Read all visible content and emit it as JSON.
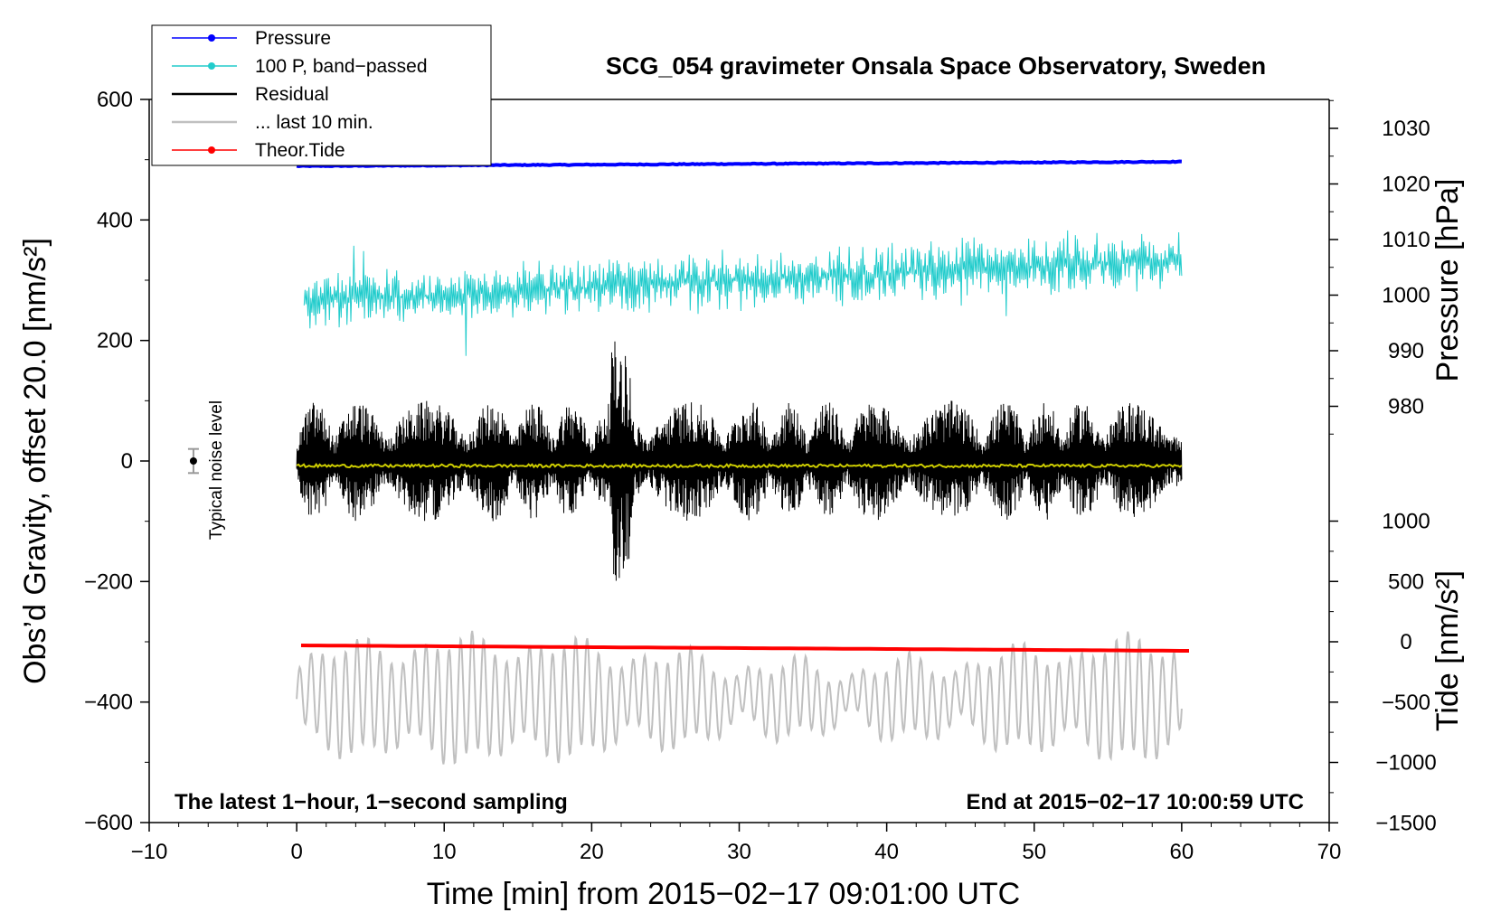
{
  "chart_data": {
    "type": "line",
    "title": "SCG_054 gravimeter Onsala Space Observatory, Sweden",
    "xlabel": "Time [min] from 2015−02−17 09:01:00 UTC",
    "ylabel_left": "Obs’d Gravity, offset 20.0 [nm/s²]",
    "ylabel_pressure": "Pressure [hPa]",
    "ylabel_tide": "Tide [nm/s²]",
    "xlim": [
      -10,
      70
    ],
    "ylim_left": [
      -600,
      600
    ],
    "ylim_pressure_range": [
      975,
      1035
    ],
    "ylim_tide_range": [
      -1500,
      1000
    ],
    "x_ticks": [
      "−10",
      "0",
      "10",
      "20",
      "30",
      "40",
      "50",
      "60",
      "70"
    ],
    "y_ticks_left": [
      "600",
      "400",
      "200",
      "0",
      "−200",
      "−400",
      "−600"
    ],
    "y_ticks_pressure": [
      "1030",
      "1020",
      "1010",
      "1000",
      "990",
      "980"
    ],
    "y_ticks_tide": [
      "1000",
      "500",
      "0",
      "−500",
      "−1000",
      "−1500"
    ],
    "annotation_left": "The latest 1−hour, 1−second sampling",
    "annotation_right": "End at 2015−02−17 10:00:59 UTC",
    "noise_label": "Typical noise level",
    "noise_level": {
      "x": -7,
      "y": 0,
      "err": 20
    },
    "legend": [
      {
        "label": "Pressure",
        "color": "#0000ff",
        "marker": true
      },
      {
        "label": "100 P, band−passed",
        "color": "#22cccc",
        "marker": true
      },
      {
        "label": "Residual",
        "color": "#000000",
        "marker": false
      },
      {
        "label": "... last 10 min.",
        "color": "#c0c0c0",
        "marker": false
      },
      {
        "label": "Theor.Tide",
        "color": "#ff0000",
        "marker": true
      }
    ],
    "series": [
      {
        "name": "Pressure",
        "axis": "pressure",
        "color": "#0000ff",
        "x_start": 0,
        "x_end": 60,
        "y_start": 1023.2,
        "y_end": 1024.0,
        "noise": 0.15
      },
      {
        "name": "100 P, band-passed",
        "axis": "left",
        "color": "#22cccc",
        "x_start": 0.5,
        "x_end": 60,
        "y_start": 265,
        "y_end": 335,
        "amplitude": 40
      },
      {
        "name": "Residual",
        "axis": "left",
        "color": "#000000",
        "x_start": 0,
        "x_end": 60,
        "y_center": 0,
        "amplitude": 100,
        "peak_min": 22,
        "peak_value": 200,
        "trough_value": -220
      },
      {
        "name": "Residual smoothed",
        "axis": "left",
        "color": "#cccc00",
        "x_start": 0,
        "x_end": 60,
        "y_center": -8
      },
      {
        "name": "... last 10 min.",
        "axis": "left",
        "color": "#c0c0c0",
        "x_start": 0,
        "x_end": 60,
        "y_center": -395,
        "amplitude": 80
      },
      {
        "name": "Theor.Tide",
        "axis": "tide",
        "color": "#ff0000",
        "x_start": 0.3,
        "x_end": 60.5,
        "y_start": -30,
        "y_end": -75
      }
    ],
    "colors": {
      "pressure": "#0000ff",
      "bandpassed": "#22cccc",
      "residual": "#000000",
      "smoothed": "#cccc00",
      "last10": "#c0c0c0",
      "tide": "#ff0000"
    }
  }
}
